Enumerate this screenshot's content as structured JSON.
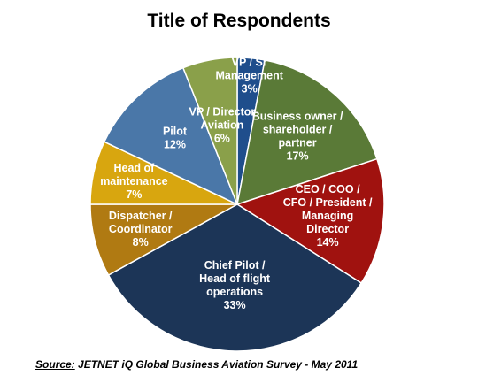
{
  "chart_data": {
    "type": "pie",
    "title": "Title of Respondents",
    "slices": [
      {
        "label": [
          "VP / Sr",
          "Management"
        ],
        "value": 3,
        "pct_label": "3%",
        "color": "#1f4e8c"
      },
      {
        "label": [
          "Business owner /",
          "shareholder /",
          "partner"
        ],
        "value": 17,
        "pct_label": "17%",
        "color": "#5a7a37"
      },
      {
        "label": [
          "CEO / COO /",
          "CFO / President /",
          "Managing",
          "Director"
        ],
        "value": 14,
        "pct_label": "14%",
        "color": "#a0120f"
      },
      {
        "label": [
          "Chief Pilot /",
          "Head of flight",
          "operations"
        ],
        "value": 33,
        "pct_label": "33%",
        "color": "#1c3557"
      },
      {
        "label": [
          "Dispatcher /",
          "Coordinator"
        ],
        "value": 8,
        "pct_label": "8%",
        "color": "#b07a12"
      },
      {
        "label": [
          "Head of",
          "maintenance"
        ],
        "value": 7,
        "pct_label": "7%",
        "color": "#d8a60f"
      },
      {
        "label": [
          "Pilot"
        ],
        "value": 12,
        "pct_label": "12%",
        "color": "#4a77a8"
      },
      {
        "label": [
          "VP / Director",
          "Aviation"
        ],
        "value": 6,
        "pct_label": "6%",
        "color": "#8aa04a"
      }
    ]
  },
  "source": {
    "label": "Source:",
    "text": " JETNET iQ Global Business Aviation Survey - May 2011"
  }
}
